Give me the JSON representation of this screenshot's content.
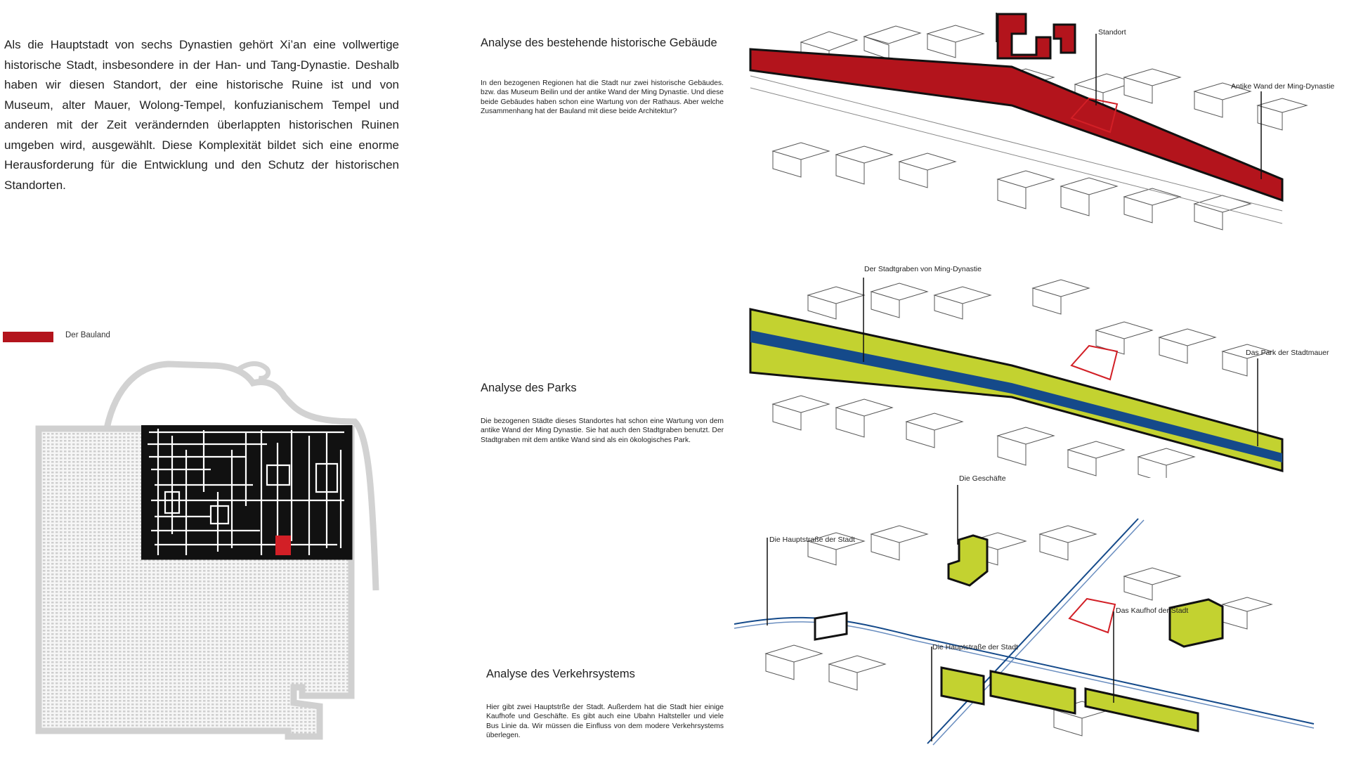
{
  "intro": {
    "text": "Als die Hauptstadt von sechs Dynastien gehört Xi’an eine vollwertige historische Stadt, insbesondere in der Han- und Tang-Dynastie. Deshalb haben wir diesen Standort, der eine historische Ruine ist und von Museum, alter Mauer, Wolong-Tempel, konfuzianischem Tempel und anderen mit der Zeit verändernden überlappten historischen Ruinen umgeben wird, ausgewählt. Diese Komplexität bildet sich eine enorme Herausforderung für die Entwicklung und den Schutz der historischen Standorten."
  },
  "legend": {
    "label": "Der Bauland",
    "color": "#b3141c"
  },
  "colors": {
    "red": "#b3141c",
    "green": "#c3d230",
    "blue": "#154a8a",
    "black": "#111111",
    "grey": "#c8c8c8"
  },
  "sections": [
    {
      "title": "Analyse des bestehende historische Gebäude",
      "body": "In den bezogenen Regionen hat die Stadt nur zwei historische Gebäudes. bzw. das Museum Beilin und der antike Wand der Ming Dynastie. Und diese beide Gebäudes haben schon eine Wartung von der Rathaus. Aber welche Zusammenhang hat der Bauland mit diese beide Architektur?",
      "callouts": [
        "Standort",
        "Antike Wand der Ming-Dynastie"
      ]
    },
    {
      "title": "Analyse des Parks",
      "body": "Die bezogenen Städte dieses Standortes hat schon eine Wartung von dem antike Wand der Ming Dynastie. Sie hat auch den Stadtgraben benutzt. Der Stadtgraben mit dem antike Wand sind als ein ökologisches Park.",
      "callouts": [
        "Der Stadtgraben von Ming-Dynastie",
        "Das Park der Stadtmauer"
      ]
    },
    {
      "title": "Analyse des Verkehrsystems",
      "body": "Hier gibt zwei Hauptstrße der Stadt. Außerdem hat die Stadt hier einige Kaufhofe und Geschäfte. Es gibt auch eine Ubahn Haltsteller und viele Bus Linie da. Wir müssen die Einfluss von dem modere Verkehrsystems überlegen.",
      "callouts": [
        "Die Geschäfte",
        "Die Hauptstraße der Stadt",
        "Das Kaufhof der Stadt",
        "Die Hauptstraße der Stadt"
      ]
    }
  ]
}
